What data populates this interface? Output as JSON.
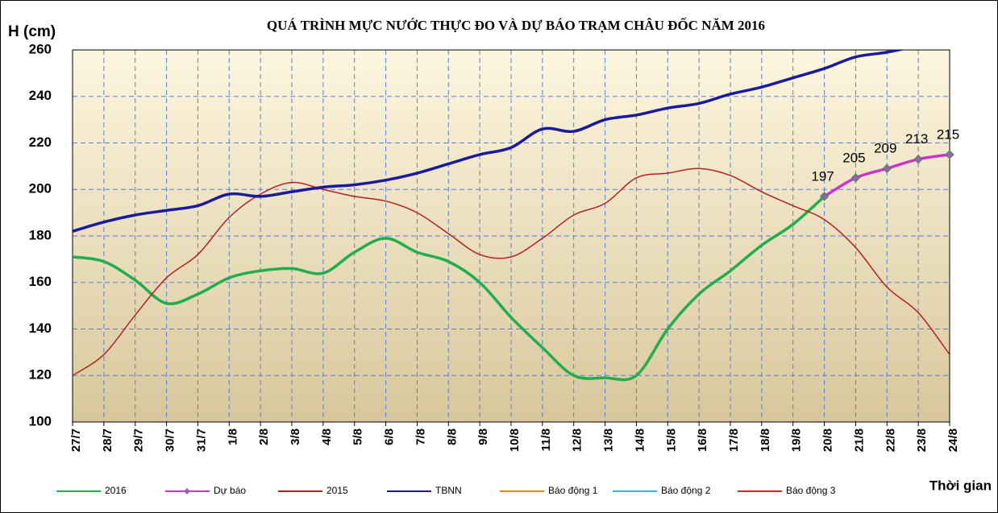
{
  "chart_data": {
    "type": "line",
    "title": "QUÁ TRÌNH MỰC NƯỚC THỰC ĐO VÀ DỰ BÁO TRẠM CHÂU ĐỐC  NĂM 2016",
    "y_label": "H (cm)",
    "x_label": "Thời gian",
    "categories": [
      "27/7",
      "28/7",
      "29/7",
      "30/7",
      "31/7",
      "1/8",
      "2/8",
      "3/8",
      "4/8",
      "5/8",
      "6/8",
      "7/8",
      "8/8",
      "9/8",
      "10/8",
      "11/8",
      "12/8",
      "13/8",
      "14/8",
      "15/8",
      "16/8",
      "17/8",
      "18/8",
      "19/8",
      "20/8",
      "21/8",
      "22/8",
      "23/8",
      "24/8"
    ],
    "ylim": [
      100,
      260
    ],
    "yticks": [
      100,
      120,
      140,
      160,
      180,
      200,
      220,
      240,
      260
    ],
    "grid": true,
    "legend": "bottom",
    "series": [
      {
        "name": "2016",
        "color": "#1fae4d",
        "values": [
          171,
          169,
          161,
          151,
          155,
          162,
          165,
          166,
          164,
          173,
          179,
          173,
          169,
          160,
          145,
          132,
          120,
          119,
          120,
          140,
          155,
          165,
          176,
          185,
          197,
          null,
          null,
          null,
          null
        ]
      },
      {
        "name": "Dự báo",
        "color": "#cc33cc",
        "marker": "diamond",
        "values": [
          null,
          null,
          null,
          null,
          null,
          null,
          null,
          null,
          null,
          null,
          null,
          null,
          null,
          null,
          null,
          null,
          null,
          null,
          null,
          null,
          null,
          null,
          null,
          null,
          197,
          205,
          209,
          213,
          215
        ],
        "value_labels": [
          null,
          null,
          null,
          null,
          null,
          null,
          null,
          null,
          null,
          null,
          null,
          null,
          null,
          null,
          null,
          null,
          null,
          null,
          null,
          null,
          null,
          null,
          null,
          null,
          "197",
          "205",
          "209",
          "213",
          "215"
        ]
      },
      {
        "name": "2015",
        "color": "#b22222",
        "values": [
          120,
          129,
          146,
          162,
          172,
          188,
          198,
          203,
          200,
          197,
          195,
          190,
          181,
          172,
          171,
          179,
          189,
          194,
          205,
          207,
          209,
          206,
          199,
          193,
          187,
          175,
          158,
          147,
          129
        ]
      },
      {
        "name": "TBNN",
        "color": "#1a1a9c",
        "values": [
          182,
          186,
          189,
          191,
          193,
          198,
          197,
          199,
          201,
          202,
          204,
          207,
          211,
          215,
          218,
          226,
          225,
          230,
          232,
          235,
          237,
          241,
          244,
          248,
          252,
          257,
          259,
          262,
          266
        ]
      },
      {
        "name": "Báo động 1",
        "color": "#e68a00",
        "values": [
          null,
          null,
          null,
          null,
          null,
          null,
          null,
          null,
          null,
          null,
          null,
          null,
          null,
          null,
          null,
          null,
          null,
          null,
          null,
          null,
          null,
          null,
          null,
          null,
          null,
          null,
          null,
          null,
          null
        ]
      },
      {
        "name": "Báo động 2",
        "color": "#33b5e5",
        "values": [
          null,
          null,
          null,
          null,
          null,
          null,
          null,
          null,
          null,
          null,
          null,
          null,
          null,
          null,
          null,
          null,
          null,
          null,
          null,
          null,
          null,
          null,
          null,
          null,
          null,
          null,
          null,
          null,
          null
        ]
      },
      {
        "name": "Báo động 3",
        "color": "#e02020",
        "values": [
          null,
          null,
          null,
          null,
          null,
          null,
          null,
          null,
          null,
          null,
          null,
          null,
          null,
          null,
          null,
          null,
          null,
          null,
          null,
          null,
          null,
          null,
          null,
          null,
          null,
          null,
          null,
          null,
          null
        ]
      }
    ]
  }
}
